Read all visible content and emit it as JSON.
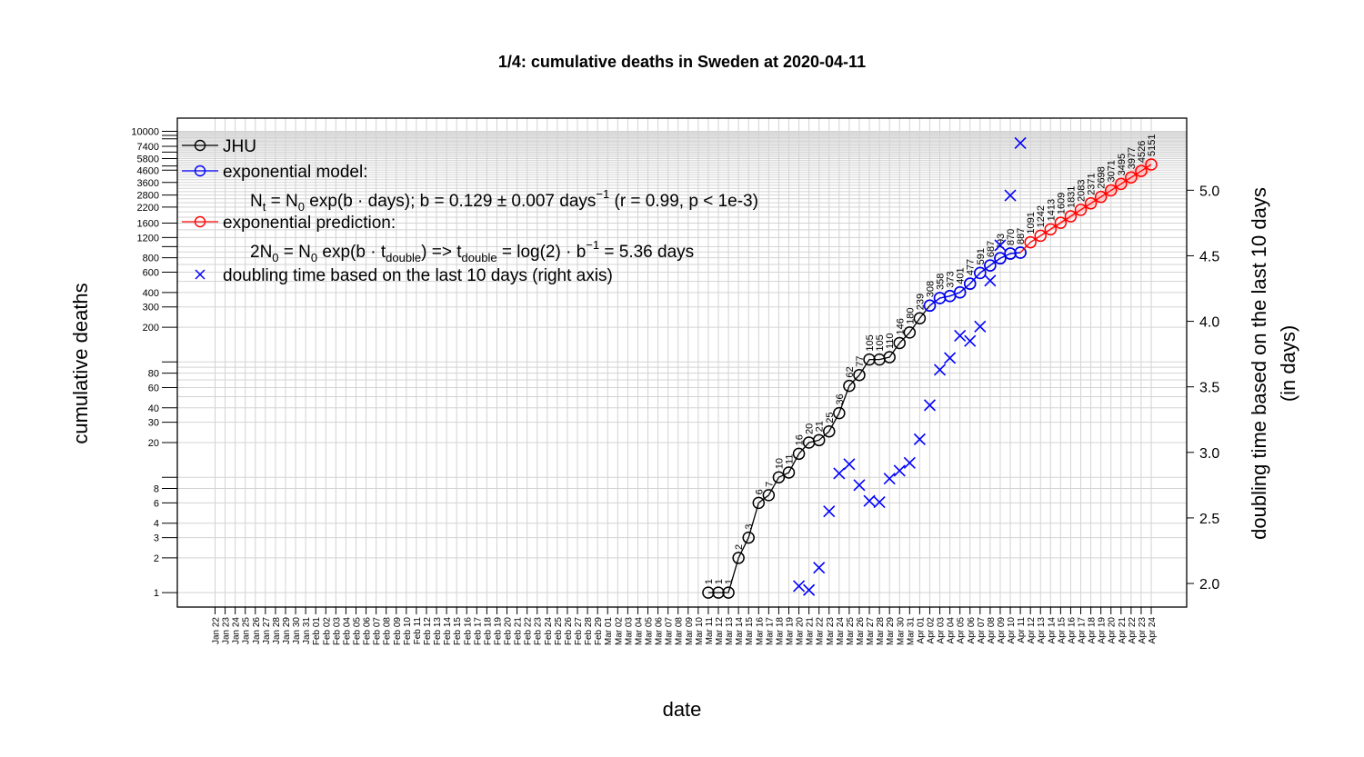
{
  "chart_data": {
    "type": "line",
    "title": "1/4: cumulative deaths in Sweden at 2020-04-11",
    "xlabel": "date",
    "ylabel": "cumulative deaths",
    "y2label_line1": "doubling time based on the last 10 days",
    "y2label_line2": "(in days)",
    "y_scale": "log",
    "ylim": [
      0.75,
      13000
    ],
    "y_ticks": [
      1,
      2,
      3,
      4,
      6,
      8,
      20,
      30,
      40,
      60,
      80,
      200,
      300,
      400,
      600,
      800,
      1200,
      1600,
      2200,
      2800,
      3600,
      4600,
      5800,
      7400,
      10000
    ],
    "y2lim": [
      1.82,
      5.55
    ],
    "y2_ticks": [
      "2.0",
      "2.5",
      "3.0",
      "3.5",
      "4.0",
      "4.5",
      "5.0"
    ],
    "grid": true,
    "legend_position": "top-left",
    "x_dates": [
      "Jan 22",
      "Jan 23",
      "Jan 24",
      "Jan 25",
      "Jan 26",
      "Jan 27",
      "Jan 28",
      "Jan 29",
      "Jan 30",
      "Jan 31",
      "Feb 01",
      "Feb 02",
      "Feb 03",
      "Feb 04",
      "Feb 05",
      "Feb 06",
      "Feb 07",
      "Feb 08",
      "Feb 09",
      "Feb 10",
      "Feb 11",
      "Feb 12",
      "Feb 13",
      "Feb 14",
      "Feb 15",
      "Feb 16",
      "Feb 17",
      "Feb 18",
      "Feb 19",
      "Feb 20",
      "Feb 21",
      "Feb 22",
      "Feb 23",
      "Feb 24",
      "Feb 25",
      "Feb 26",
      "Feb 27",
      "Feb 28",
      "Feb 29",
      "Mar 01",
      "Mar 02",
      "Mar 03",
      "Mar 04",
      "Mar 05",
      "Mar 06",
      "Mar 07",
      "Mar 08",
      "Mar 09",
      "Mar 10",
      "Mar 11",
      "Mar 12",
      "Mar 13",
      "Mar 14",
      "Mar 15",
      "Mar 16",
      "Mar 17",
      "Mar 18",
      "Mar 19",
      "Mar 20",
      "Mar 21",
      "Mar 22",
      "Mar 23",
      "Mar 24",
      "Mar 25",
      "Mar 26",
      "Mar 27",
      "Mar 28",
      "Mar 29",
      "Mar 30",
      "Mar 31",
      "Apr 01",
      "Apr 02",
      "Apr 03",
      "Apr 04",
      "Apr 05",
      "Apr 06",
      "Apr 07",
      "Apr 08",
      "Apr 09",
      "Apr 10",
      "Apr 11",
      "Apr 12",
      "Apr 13",
      "Apr 14",
      "Apr 15",
      "Apr 16",
      "Apr 17",
      "Apr 18",
      "Apr 19",
      "Apr 20",
      "Apr 21",
      "Apr 22",
      "Apr 23",
      "Apr 24"
    ],
    "series": [
      {
        "name": "JHU",
        "color": "#000000",
        "x": [
          "Mar 11",
          "Mar 12",
          "Mar 13",
          "Mar 14",
          "Mar 15",
          "Mar 16",
          "Mar 17",
          "Mar 18",
          "Mar 19",
          "Mar 20",
          "Mar 21",
          "Mar 22",
          "Mar 23",
          "Mar 24",
          "Mar 25",
          "Mar 26",
          "Mar 27",
          "Mar 28",
          "Mar 29",
          "Mar 30",
          "Mar 31",
          "Apr 01",
          "Apr 02",
          "Apr 03",
          "Apr 04",
          "Apr 05",
          "Apr 06",
          "Apr 07",
          "Apr 08",
          "Apr 09",
          "Apr 10",
          "Apr 11"
        ],
        "values": [
          1,
          1,
          1,
          2,
          3,
          6,
          7,
          10,
          11,
          16,
          20,
          21,
          25,
          36,
          62,
          77,
          105,
          105,
          110,
          146,
          180,
          239,
          308,
          358,
          373,
          401,
          477,
          591,
          687,
          793,
          870,
          887
        ]
      },
      {
        "name": "exponential model:",
        "color": "#0000ff",
        "x": [
          "Apr 02",
          "Apr 03",
          "Apr 04",
          "Apr 05",
          "Apr 06",
          "Apr 07",
          "Apr 08",
          "Apr 09",
          "Apr 10",
          "Apr 11"
        ],
        "values": [
          308,
          358,
          373,
          401,
          477,
          591,
          687,
          793,
          870,
          887
        ]
      },
      {
        "name": "exponential prediction:",
        "color": "#ff0000",
        "x": [
          "Apr 12",
          "Apr 13",
          "Apr 14",
          "Apr 15",
          "Apr 16",
          "Apr 17",
          "Apr 18",
          "Apr 19",
          "Apr 20",
          "Apr 21",
          "Apr 22",
          "Apr 23",
          "Apr 24"
        ],
        "values": [
          1091,
          1242,
          1413,
          1609,
          1831,
          2083,
          2371,
          2698,
          3071,
          3495,
          3977,
          4526,
          5151
        ]
      },
      {
        "name": "doubling time based on the last  10  days (right axis)",
        "color": "#0000ff",
        "axis": "right",
        "x": [
          "Mar 20",
          "Mar 21",
          "Mar 22",
          "Mar 23",
          "Mar 24",
          "Mar 25",
          "Mar 26",
          "Mar 27",
          "Mar 28",
          "Mar 29",
          "Mar 30",
          "Mar 31",
          "Apr 01",
          "Apr 02",
          "Apr 03",
          "Apr 04",
          "Apr 05",
          "Apr 06",
          "Apr 07",
          "Apr 08",
          "Apr 09",
          "Apr 10",
          "Apr 11"
        ],
        "values": [
          1.98,
          1.95,
          2.12,
          2.55,
          2.84,
          2.91,
          2.75,
          2.63,
          2.62,
          2.8,
          2.86,
          2.92,
          3.1,
          3.36,
          3.63,
          3.72,
          3.89,
          3.85,
          3.96,
          4.31,
          4.58,
          4.96,
          5.36
        ]
      }
    ],
    "legend": {
      "jhu": "JHU",
      "model": "exponential model:",
      "model_formula": {
        "p1": "N",
        "p1_sub": "t",
        "p2": " = N",
        "p2_sub": "0",
        "p3": " exp(b · days); b = 0.129 ± 0.007 days",
        "p3_sup": "−1",
        "p4": " (r = 0.99, p < 1e-3)"
      },
      "prediction": "exponential prediction:",
      "prediction_formula": {
        "p1": "2N",
        "p1_sub": "0",
        "p2": " = N",
        "p2_sub": "0",
        "p3": " exp(b · t",
        "p3_sub": "double",
        "p4": ") => t",
        "p4_sub": "double",
        "p5": " = log(2) · b",
        "p5_sup": "−1",
        "p6": " = 5.36 days"
      },
      "doubling": "doubling time based on the last  10  days (right axis)"
    }
  }
}
